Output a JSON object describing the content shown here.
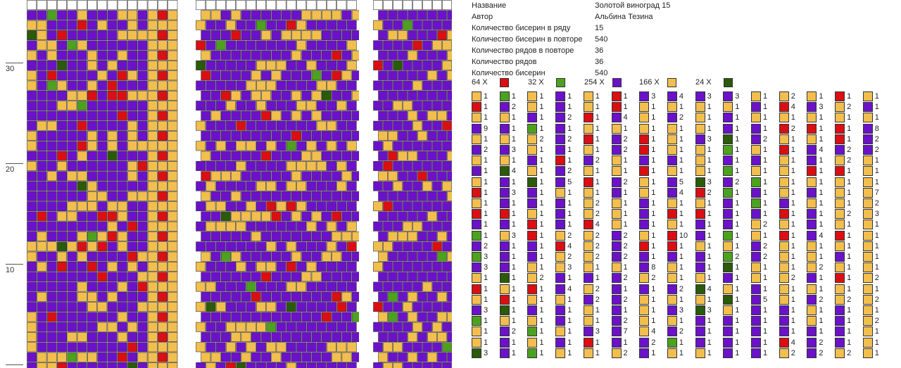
{
  "colors": {
    "purple": "#6b12c9",
    "gold": "#f2be4e",
    "red": "#d90f14",
    "light_green": "#4ca11e",
    "dark_green": "#2a5a0a",
    "white": "#ffffff",
    "grid_line": "#333333"
  },
  "row_labels": [
    "30",
    "20",
    "10"
  ],
  "info": [
    {
      "label": "Название",
      "value": "Золотой виноград 15"
    },
    {
      "label": "Автор",
      "value": "Альбина Тезина"
    },
    {
      "label": "Количество бисерин в ряду",
      "value": "15"
    },
    {
      "label": "Количество бисерин в повторе",
      "value": "540"
    },
    {
      "label": "Количество рядов в повторе",
      "value": "36"
    },
    {
      "label": "Количество рядов",
      "value": "36"
    },
    {
      "label": "Количество бисерин",
      "value": "540"
    }
  ],
  "palette": [
    {
      "count": "64 X",
      "color": "red"
    },
    {
      "count": "32 X",
      "color": "light_green"
    },
    {
      "count": "254 X",
      "color": "purple"
    },
    {
      "count": "166 X",
      "color": "gold"
    },
    {
      "count": "24 X",
      "color": "dark_green"
    }
  ],
  "sequence_columns": [
    [
      [
        "gold",
        "1"
      ],
      [
        "red",
        "1"
      ],
      [
        "gold",
        "1"
      ],
      [
        "purple",
        "9"
      ],
      [
        "gold",
        "1"
      ],
      [
        "purple",
        "2"
      ],
      [
        "gold",
        "1"
      ],
      [
        "purple",
        "1"
      ],
      [
        "gold",
        "1"
      ],
      [
        "red",
        "1"
      ],
      [
        "gold",
        "1"
      ],
      [
        "red",
        "1"
      ],
      [
        "purple",
        "1"
      ],
      [
        "light_green",
        "1"
      ],
      [
        "purple",
        "2"
      ],
      [
        "light_green",
        "3"
      ],
      [
        "purple",
        "3"
      ],
      [
        "gold",
        "1"
      ],
      [
        "red",
        "1"
      ],
      [
        "gold",
        "1"
      ],
      [
        "purple",
        "3"
      ],
      [
        "light_green",
        "1"
      ],
      [
        "gold",
        "1"
      ],
      [
        "gold",
        "1"
      ],
      [
        "dark_green",
        "3"
      ]
    ],
    [
      [
        "light_green",
        "1"
      ],
      [
        "purple",
        "2"
      ],
      [
        "gold",
        "1"
      ],
      [
        "purple",
        "1"
      ],
      [
        "gold",
        "1"
      ],
      [
        "purple",
        "3"
      ],
      [
        "gold",
        "1"
      ],
      [
        "dark_green",
        "4"
      ],
      [
        "purple",
        "1"
      ],
      [
        "purple",
        "3"
      ],
      [
        "purple",
        "1"
      ],
      [
        "red",
        "1"
      ],
      [
        "purple",
        "1"
      ],
      [
        "gold",
        "3"
      ],
      [
        "purple",
        "1"
      ],
      [
        "purple",
        "1"
      ],
      [
        "purple",
        "1"
      ],
      [
        "dark_green",
        "1"
      ],
      [
        "gold",
        "1"
      ],
      [
        "red",
        "1"
      ],
      [
        "dark_green",
        "1"
      ],
      [
        "gold",
        "1"
      ],
      [
        "purple",
        "2"
      ],
      [
        "purple",
        "1"
      ],
      [
        "purple",
        "1"
      ]
    ],
    [
      [
        "gold",
        "1"
      ],
      [
        "gold",
        "1"
      ],
      [
        "purple",
        "1"
      ],
      [
        "light_green",
        "1"
      ],
      [
        "gold",
        "2"
      ],
      [
        "gold",
        "1"
      ],
      [
        "purple",
        "1"
      ],
      [
        "gold",
        "1"
      ],
      [
        "dark_green",
        "1"
      ],
      [
        "purple",
        "1"
      ],
      [
        "purple",
        "1"
      ],
      [
        "gold",
        "1"
      ],
      [
        "red",
        "1"
      ],
      [
        "red",
        "1"
      ],
      [
        "purple",
        "1"
      ],
      [
        "purple",
        "1"
      ],
      [
        "gold",
        "1"
      ],
      [
        "gold",
        "2"
      ],
      [
        "red",
        "1"
      ],
      [
        "gold",
        "1"
      ],
      [
        "purple",
        "1"
      ],
      [
        "gold",
        "1"
      ],
      [
        "light_green",
        "1"
      ],
      [
        "gold",
        "1"
      ],
      [
        "light_green",
        "1"
      ]
    ],
    [
      [
        "purple",
        "1"
      ],
      [
        "purple",
        "1"
      ],
      [
        "purple",
        "2"
      ],
      [
        "purple",
        "1"
      ],
      [
        "purple",
        "2"
      ],
      [
        "purple",
        "1"
      ],
      [
        "red",
        "1"
      ],
      [
        "purple",
        "2"
      ],
      [
        "purple",
        "5"
      ],
      [
        "gold",
        "1"
      ],
      [
        "purple",
        "1"
      ],
      [
        "purple",
        "1"
      ],
      [
        "purple",
        "1"
      ],
      [
        "gold",
        "2"
      ],
      [
        "red",
        "4"
      ],
      [
        "gold",
        "2"
      ],
      [
        "gold",
        "3"
      ],
      [
        "purple",
        "1"
      ],
      [
        "purple",
        "4"
      ],
      [
        "gold",
        "1"
      ],
      [
        "purple",
        "1"
      ],
      [
        "purple",
        "1"
      ],
      [
        "gold",
        "1"
      ],
      [
        "purple",
        "1"
      ],
      [
        "gold",
        "1"
      ]
    ],
    [
      [
        "gold",
        "1"
      ],
      [
        "gold",
        "1"
      ],
      [
        "red",
        "1"
      ],
      [
        "gold",
        "1"
      ],
      [
        "red",
        "1"
      ],
      [
        "gold",
        "1"
      ],
      [
        "purple",
        "2"
      ],
      [
        "gold",
        "1"
      ],
      [
        "red",
        "1"
      ],
      [
        "gold",
        "1"
      ],
      [
        "gold",
        "2"
      ],
      [
        "gold",
        "2"
      ],
      [
        "red",
        "4"
      ],
      [
        "gold",
        "2"
      ],
      [
        "gold",
        "2"
      ],
      [
        "gold",
        "2"
      ],
      [
        "gold",
        "1"
      ],
      [
        "purple",
        "1"
      ],
      [
        "gold",
        "2"
      ],
      [
        "purple",
        "2"
      ],
      [
        "gold",
        "1"
      ],
      [
        "gold",
        "1"
      ],
      [
        "purple",
        "3"
      ],
      [
        "red",
        "1"
      ],
      [
        "gold",
        "1"
      ]
    ],
    [
      [
        "red",
        "1"
      ],
      [
        "red",
        "1"
      ],
      [
        "purple",
        "4"
      ],
      [
        "gold",
        "1"
      ],
      [
        "purple",
        "2"
      ],
      [
        "purple",
        "2"
      ],
      [
        "gold",
        "1"
      ],
      [
        "gold",
        "1"
      ],
      [
        "purple",
        "2"
      ],
      [
        "purple",
        "1"
      ],
      [
        "gold",
        "1"
      ],
      [
        "gold",
        "1"
      ],
      [
        "gold",
        "1"
      ],
      [
        "purple",
        "2"
      ],
      [
        "purple",
        "2"
      ],
      [
        "purple",
        "2"
      ],
      [
        "gold",
        "1"
      ],
      [
        "purple",
        "2"
      ],
      [
        "purple",
        "1"
      ],
      [
        "purple",
        "2"
      ],
      [
        "purple",
        "1"
      ],
      [
        "purple",
        "2"
      ],
      [
        "purple",
        "7"
      ],
      [
        "purple",
        "1"
      ],
      [
        "gold",
        "2"
      ]
    ],
    [
      [
        "purple",
        "3"
      ],
      [
        "gold",
        "1"
      ],
      [
        "gold",
        "1"
      ],
      [
        "gold",
        "1"
      ],
      [
        "red",
        "1"
      ],
      [
        "red",
        "1"
      ],
      [
        "purple",
        "1"
      ],
      [
        "red",
        "1"
      ],
      [
        "gold",
        "1"
      ],
      [
        "gold",
        "1"
      ],
      [
        "purple",
        "1"
      ],
      [
        "purple",
        "1"
      ],
      [
        "purple",
        "1"
      ],
      [
        "gold",
        "1"
      ],
      [
        "red",
        "1"
      ],
      [
        "purple",
        "1"
      ],
      [
        "purple",
        "8"
      ],
      [
        "gold",
        "2"
      ],
      [
        "purple",
        "1"
      ],
      [
        "gold",
        "1"
      ],
      [
        "gold",
        "1"
      ],
      [
        "gold",
        "1"
      ],
      [
        "gold",
        "4"
      ],
      [
        "purple",
        "2"
      ],
      [
        "purple",
        "1"
      ]
    ],
    [
      [
        "purple",
        "4"
      ],
      [
        "gold",
        "1"
      ],
      [
        "purple",
        "2"
      ],
      [
        "gold",
        "1"
      ],
      [
        "gold",
        "1"
      ],
      [
        "gold",
        "1"
      ],
      [
        "purple",
        "1"
      ],
      [
        "gold",
        "1"
      ],
      [
        "purple",
        "5"
      ],
      [
        "purple",
        "4"
      ],
      [
        "gold",
        "1"
      ],
      [
        "red",
        "1"
      ],
      [
        "gold",
        "1"
      ],
      [
        "red",
        "10"
      ],
      [
        "red",
        "1"
      ],
      [
        "purple",
        "1"
      ],
      [
        "gold",
        "1"
      ],
      [
        "gold",
        "1"
      ],
      [
        "purple",
        "2"
      ],
      [
        "gold",
        "1"
      ],
      [
        "purple",
        "3"
      ],
      [
        "gold",
        "1"
      ],
      [
        "purple",
        "2"
      ],
      [
        "light_green",
        "1"
      ],
      [
        "gold",
        "1"
      ]
    ],
    [
      [
        "purple",
        "3"
      ],
      [
        "gold",
        "1"
      ],
      [
        "gold",
        "1"
      ],
      [
        "gold",
        "1"
      ],
      [
        "purple",
        "3"
      ],
      [
        "gold",
        "1"
      ],
      [
        "gold",
        "1"
      ],
      [
        "gold",
        "1"
      ],
      [
        "dark_green",
        "3"
      ],
      [
        "red",
        "2"
      ],
      [
        "gold",
        "1"
      ],
      [
        "red",
        "1"
      ],
      [
        "purple",
        "1"
      ],
      [
        "purple",
        "1"
      ],
      [
        "gold",
        "1"
      ],
      [
        "purple",
        "1"
      ],
      [
        "purple",
        "1"
      ],
      [
        "gold",
        "1"
      ],
      [
        "dark_green",
        "4"
      ],
      [
        "gold",
        "1"
      ],
      [
        "dark_green",
        "3"
      ],
      [
        "purple",
        "1"
      ],
      [
        "purple",
        "1"
      ],
      [
        "purple",
        "1"
      ],
      [
        "gold",
        "1"
      ]
    ],
    [
      [
        "purple",
        "3"
      ],
      [
        "gold",
        "1"
      ],
      [
        "purple",
        "1"
      ],
      [
        "purple",
        "1"
      ],
      [
        "dark_green",
        "1"
      ],
      [
        "light_green",
        "1"
      ],
      [
        "purple",
        "1"
      ],
      [
        "light_green",
        "1"
      ],
      [
        "purple",
        "2"
      ],
      [
        "light_green",
        "1"
      ],
      [
        "purple",
        "1"
      ],
      [
        "purple",
        "1"
      ],
      [
        "purple",
        "1"
      ],
      [
        "light_green",
        "1"
      ],
      [
        "gold",
        "1"
      ],
      [
        "light_green",
        "2"
      ],
      [
        "dark_green",
        "1"
      ],
      [
        "purple",
        "1"
      ],
      [
        "gold",
        "1"
      ],
      [
        "dark_green",
        "1"
      ],
      [
        "gold",
        "1"
      ],
      [
        "purple",
        "1"
      ],
      [
        "purple",
        "1"
      ],
      [
        "purple",
        "1"
      ],
      [
        "purple",
        "1"
      ]
    ],
    [
      [
        "gold",
        "1"
      ],
      [
        "purple",
        "1"
      ],
      [
        "gold",
        "1"
      ],
      [
        "purple",
        "1"
      ],
      [
        "purple",
        "2"
      ],
      [
        "gold",
        "1"
      ],
      [
        "purple",
        "1"
      ],
      [
        "gold",
        "1"
      ],
      [
        "light_green",
        "1"
      ],
      [
        "purple",
        "1"
      ],
      [
        "light_green",
        "1"
      ],
      [
        "purple",
        "1"
      ],
      [
        "gold",
        "2"
      ],
      [
        "gold",
        "1"
      ],
      [
        "purple",
        "2"
      ],
      [
        "purple",
        "2"
      ],
      [
        "gold",
        "1"
      ],
      [
        "gold",
        "1"
      ],
      [
        "purple",
        "1"
      ],
      [
        "purple",
        "5"
      ],
      [
        "purple",
        "1"
      ],
      [
        "purple",
        "1"
      ],
      [
        "purple",
        "1"
      ],
      [
        "purple",
        "1"
      ],
      [
        "purple",
        "1"
      ]
    ],
    [
      [
        "gold",
        "2"
      ],
      [
        "red",
        "4"
      ],
      [
        "gold",
        "1"
      ],
      [
        "red",
        "2"
      ],
      [
        "gold",
        "1"
      ],
      [
        "red",
        "1"
      ],
      [
        "gold",
        "1"
      ],
      [
        "gold",
        "1"
      ],
      [
        "gold",
        "1"
      ],
      [
        "gold",
        "1"
      ],
      [
        "purple",
        "1"
      ],
      [
        "red",
        "1"
      ],
      [
        "gold",
        "1"
      ],
      [
        "red",
        "1"
      ],
      [
        "gold",
        "1"
      ],
      [
        "gold",
        "1"
      ],
      [
        "gold",
        "1"
      ],
      [
        "gold",
        "2"
      ],
      [
        "gold",
        "1"
      ],
      [
        "gold",
        "1"
      ],
      [
        "purple",
        "1"
      ],
      [
        "purple",
        "1"
      ],
      [
        "purple",
        "1"
      ],
      [
        "red",
        "4"
      ],
      [
        "gold",
        "2"
      ]
    ],
    [
      [
        "gold",
        "1"
      ],
      [
        "purple",
        "3"
      ],
      [
        "gold",
        "1"
      ],
      [
        "red",
        "1"
      ],
      [
        "gold",
        "1"
      ],
      [
        "purple",
        "4"
      ],
      [
        "purple",
        "1"
      ],
      [
        "red",
        "1"
      ],
      [
        "gold",
        "1"
      ],
      [
        "purple",
        "1"
      ],
      [
        "gold",
        "1"
      ],
      [
        "purple",
        "1"
      ],
      [
        "purple",
        "1"
      ],
      [
        "purple",
        "4"
      ],
      [
        "gold",
        "1"
      ],
      [
        "gold",
        "1"
      ],
      [
        "gold",
        "2"
      ],
      [
        "purple",
        "1"
      ],
      [
        "gold",
        "1"
      ],
      [
        "purple",
        "2"
      ],
      [
        "gold",
        "1"
      ],
      [
        "gold",
        "1"
      ],
      [
        "purple",
        "1"
      ],
      [
        "purple",
        "2"
      ],
      [
        "purple",
        "2"
      ]
    ],
    [
      [
        "red",
        "1"
      ],
      [
        "gold",
        "2"
      ],
      [
        "gold",
        "1"
      ],
      [
        "red",
        "1"
      ],
      [
        "red",
        "1"
      ],
      [
        "purple",
        "2"
      ],
      [
        "gold",
        "2"
      ],
      [
        "red",
        "1"
      ],
      [
        "gold",
        "1"
      ],
      [
        "gold",
        "1"
      ],
      [
        "gold",
        "1"
      ],
      [
        "gold",
        "2"
      ],
      [
        "gold",
        "1"
      ],
      [
        "red",
        "1"
      ],
      [
        "gold",
        "1"
      ],
      [
        "purple",
        "1"
      ],
      [
        "gold",
        "1"
      ],
      [
        "red",
        "1"
      ],
      [
        "gold",
        "1"
      ],
      [
        "gold",
        "2"
      ],
      [
        "purple",
        "1"
      ],
      [
        "purple",
        "1"
      ],
      [
        "purple",
        "1"
      ],
      [
        "purple",
        "1"
      ],
      [
        "gold",
        "2"
      ]
    ],
    [
      [
        "gold",
        "1"
      ],
      [
        "purple",
        "1"
      ],
      [
        "gold",
        "1"
      ],
      [
        "purple",
        "8"
      ],
      [
        "purple",
        "2"
      ],
      [
        "purple",
        "2"
      ],
      [
        "gold",
        "1"
      ],
      [
        "gold",
        "1"
      ],
      [
        "gold",
        "1"
      ],
      [
        "gold",
        "7"
      ],
      [
        "gold",
        "2"
      ],
      [
        "gold",
        "3"
      ],
      [
        "gold",
        "1"
      ],
      [
        "gold",
        "1"
      ],
      [
        "gold",
        "1"
      ],
      [
        "gold",
        "1"
      ],
      [
        "gold",
        "1"
      ],
      [
        "gold",
        "2"
      ],
      [
        "gold",
        "1"
      ],
      [
        "gold",
        "2"
      ],
      [
        "gold",
        "1"
      ],
      [
        "gold",
        "2"
      ],
      [
        "gold",
        "1"
      ],
      [
        "gold",
        "1"
      ],
      [
        "gold",
        "1"
      ]
    ]
  ]
}
